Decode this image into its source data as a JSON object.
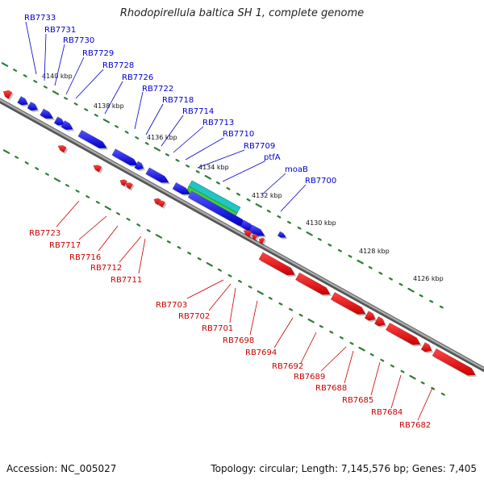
{
  "title": "Rhodopirellula baltica SH 1, complete genome",
  "footer": {
    "accession": "Accession: NC_005027",
    "summary": "Topology: circular; Length: 7,145,576 bp; Genes: 7,405"
  },
  "colors": {
    "forward": "#0000ee",
    "reverse": "#ee0000",
    "backbone": "#888888",
    "tick": "#2e7d32",
    "rna_cyan": "#22c4c4",
    "rna_green": "#44cc44"
  },
  "kbp_labels": [
    "4140 kbp",
    "4138 kbp",
    "4136 kbp",
    "4134 kbp",
    "4132 kbp",
    "4130 kbp",
    "4128 kbp",
    "4126 kbp"
  ],
  "forward_labels": [
    "RB7733",
    "RB7731",
    "RB7730",
    "RB7729",
    "RB7728",
    "RB7726",
    "RB7722",
    "RB7718",
    "RB7714",
    "RB7713",
    "RB7710",
    "RB7709",
    "ptfA",
    "moaB",
    "RB7700"
  ],
  "reverse_labels": [
    "RB7723",
    "RB7717",
    "RB7716",
    "RB7712",
    "RB7711",
    "RB7703",
    "RB7702",
    "RB7701",
    "RB7698",
    "RB7694",
    "RB7692",
    "RB7689",
    "RB7688",
    "RB7685",
    "RB7684",
    "RB7682"
  ]
}
